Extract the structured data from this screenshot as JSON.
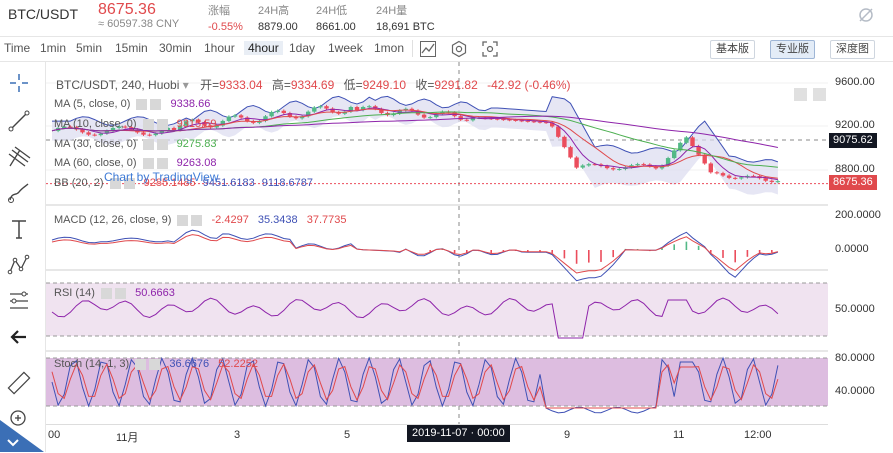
{
  "header": {
    "pair": "BTC/USDT",
    "price": "8675.36",
    "cny": "≈ 60597.38 CNY",
    "change_label": "涨幅",
    "change_value": "-0.55%",
    "high_label": "24H高",
    "high_value": "8879.00",
    "low_label": "24H低",
    "low_value": "8661.00",
    "volume_label": "24H量",
    "volume_value": "18,691 BTC"
  },
  "toolbar": {
    "intervals": [
      "Time",
      "1min",
      "5min",
      "15min",
      "30min",
      "1hour",
      "4hour",
      "1day",
      "1week",
      "1mon"
    ],
    "active_interval": "4hour",
    "basic": "基本版",
    "pro": "专业版",
    "depth": "深度图"
  },
  "legend": {
    "title": "BTC/USDT, 240, Huobi",
    "open_label": "开=",
    "open": "9333.04",
    "high_label": "高=",
    "high": "9334.69",
    "low_label": "低=",
    "low": "9249.10",
    "close_label": "收=",
    "close": "9291.82",
    "change": "-42.92 (-0.46%)",
    "ma5": "MA (5, close, 0)",
    "ma5_val": "9338.66",
    "ma10": "MA (10, close, 0)",
    "ma10_val": "9315.59",
    "ma30": "MA (30, close, 0)",
    "ma30_val": "9275.83",
    "ma60": "MA (60, close, 0)",
    "ma60_val": "9263.08",
    "bb": "BB (20, 2)",
    "bb_v1": "9285.1485",
    "bb_v2": "9451.6183",
    "bb_v3": "9118.6787",
    "watermark": "Chart by TradingView",
    "macd": "MACD (12, 26, close, 9)",
    "macd_v1": "-2.4297",
    "macd_v2": "35.3438",
    "macd_v3": "37.7735",
    "rsi": "RSI (14)",
    "rsi_v": "50.6663",
    "stoch": "Stoch (14, 1, 3)",
    "stoch_v1": "36.6676",
    "stoch_v2": "52.2252"
  },
  "axis": {
    "price_ticks": [
      "9600.00",
      "9200.00",
      "8800.00"
    ],
    "price_label_gray": "9075.62",
    "price_label_red": "8675.36",
    "macd_ticks": [
      "200.0000",
      "0.0000"
    ],
    "rsi_ticks": [
      "50.0000"
    ],
    "stoch_ticks": [
      "80.0000",
      "40.0000"
    ]
  },
  "time_axis": {
    "labels": [
      "00",
      "11月",
      "3",
      "5",
      "9",
      "11",
      "12:00"
    ],
    "crosshair_label": "2019-11-07 · 00:00"
  },
  "colors": {
    "up": "#53b987",
    "down": "#eb4d5c",
    "bb_band": "#3f51b5",
    "rsi_fill": "#f0e3f0",
    "stoch_fill": "#ddbde0"
  }
}
